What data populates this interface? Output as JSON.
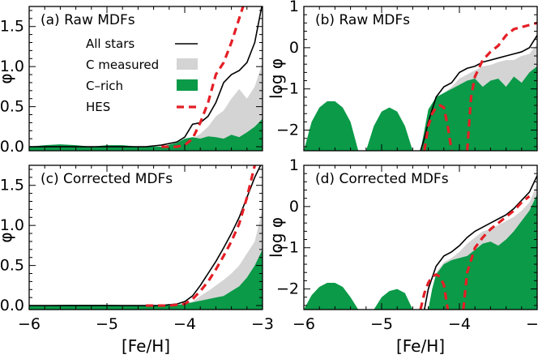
{
  "chart_data": [
    {
      "id": "a",
      "type": "area",
      "title": "(a) Raw MDFs",
      "xlabel": "",
      "ylabel": "φ",
      "xlim": [
        -6,
        -3
      ],
      "ylim": [
        -0.05,
        1.75
      ],
      "xticks": [
        -6,
        -5,
        -4,
        -3
      ],
      "yticks": [
        0.0,
        0.5,
        1.0,
        1.5
      ],
      "ytick_labels": [
        "0.0",
        "0.5",
        "1.0",
        "1.5"
      ],
      "legend": [
        {
          "label": "All stars",
          "style": "black-line"
        },
        {
          "label": "C measured",
          "style": "gray-fill"
        },
        {
          "label": "C–rich",
          "style": "green-fill"
        },
        {
          "label": "HES",
          "style": "red-dash"
        }
      ],
      "series": [
        {
          "name": "All stars",
          "x": [
            -6.0,
            -5.5,
            -5.0,
            -4.6,
            -4.5,
            -4.3,
            -4.1,
            -4.0,
            -3.9,
            -3.8,
            -3.7,
            -3.6,
            -3.5,
            -3.4,
            -3.3,
            -3.2,
            -3.1,
            -3.0
          ],
          "y": [
            0.0,
            0.0,
            0.0,
            0.0,
            0.0,
            0.02,
            0.06,
            0.12,
            0.28,
            0.3,
            0.38,
            0.55,
            0.8,
            0.9,
            0.95,
            1.05,
            1.3,
            1.8
          ]
        },
        {
          "name": "C measured",
          "x": [
            -6.0,
            -5.0,
            -4.5,
            -4.3,
            -4.1,
            -4.0,
            -3.9,
            -3.8,
            -3.7,
            -3.6,
            -3.5,
            -3.4,
            -3.3,
            -3.2,
            -3.1,
            -3.0
          ],
          "y": [
            0.0,
            0.0,
            0.0,
            0.0,
            0.02,
            0.05,
            0.1,
            0.16,
            0.25,
            0.38,
            0.45,
            0.6,
            0.72,
            0.6,
            0.75,
            1.05
          ]
        },
        {
          "name": "C-rich",
          "x": [
            -6.0,
            -5.8,
            -5.6,
            -5.4,
            -5.2,
            -5.0,
            -4.8,
            -4.6,
            -4.5,
            -4.3,
            -4.1,
            -4.0,
            -3.9,
            -3.8,
            -3.7,
            -3.6,
            -3.5,
            -3.4,
            -3.3,
            -3.2,
            -3.1,
            -3.0
          ],
          "y": [
            0.0,
            0.02,
            0.03,
            0.02,
            0.0,
            0.02,
            0.02,
            0.0,
            0.0,
            0.0,
            0.05,
            0.1,
            0.12,
            0.1,
            0.13,
            0.12,
            0.1,
            0.15,
            0.12,
            0.18,
            0.25,
            0.35
          ]
        },
        {
          "name": "HES",
          "x": [
            -4.3,
            -4.1,
            -4.0,
            -3.9,
            -3.8,
            -3.7,
            -3.6,
            -3.5,
            -3.4,
            -3.3,
            -3.25
          ],
          "y": [
            0.0,
            0.0,
            0.02,
            0.1,
            0.3,
            0.55,
            0.9,
            1.05,
            1.3,
            1.6,
            1.75
          ]
        }
      ]
    },
    {
      "id": "b",
      "type": "area",
      "title": "(b) Raw MDFs",
      "xlabel": "",
      "ylabel": "log φ",
      "xlim": [
        -6,
        -3
      ],
      "ylim": [
        -2.5,
        1.0
      ],
      "xticks": [
        -6,
        -5,
        -4,
        -3
      ],
      "yticks": [
        -2,
        -1,
        0,
        1
      ],
      "ytick_labels": [
        "−2",
        "−1",
        "0",
        "1"
      ],
      "series": [
        {
          "name": "All stars",
          "x": [
            -4.5,
            -4.45,
            -4.4,
            -4.3,
            -4.2,
            -4.1,
            -4.0,
            -3.9,
            -3.8,
            -3.7,
            -3.6,
            -3.5,
            -3.4,
            -3.3,
            -3.2,
            -3.1,
            -3.0
          ],
          "y": [
            -2.5,
            -2.2,
            -1.8,
            -1.2,
            -0.95,
            -0.85,
            -0.6,
            -0.5,
            -0.45,
            -0.35,
            -0.3,
            -0.25,
            -0.2,
            -0.15,
            -0.1,
            0.0,
            0.3
          ]
        },
        {
          "name": "C measured",
          "x": [
            -4.45,
            -4.4,
            -4.3,
            -4.2,
            -4.1,
            -4.0,
            -3.9,
            -3.8,
            -3.7,
            -3.6,
            -3.5,
            -3.4,
            -3.3,
            -3.2,
            -3.1,
            -3.0
          ],
          "y": [
            -2.5,
            -2.0,
            -1.4,
            -1.1,
            -0.95,
            -0.75,
            -0.65,
            -0.55,
            -0.45,
            -0.42,
            -0.35,
            -0.3,
            -0.3,
            -0.2,
            -0.15,
            0.1
          ]
        },
        {
          "name": "C-rich",
          "x": [
            -6.0,
            -5.9,
            -5.8,
            -5.7,
            -5.6,
            -5.5,
            -5.4,
            -5.3,
            -5.2,
            -5.1,
            -5.0,
            -4.9,
            -4.8,
            -4.7,
            -4.6,
            -4.5,
            -4.45,
            -4.4,
            -4.3,
            -4.2,
            -4.1,
            -4.0,
            -3.9,
            -3.8,
            -3.7,
            -3.6,
            -3.5,
            -3.4,
            -3.3,
            -3.2,
            -3.1,
            -3.0
          ],
          "y": [
            -2.5,
            -1.8,
            -1.45,
            -1.3,
            -1.3,
            -1.45,
            -1.8,
            -2.5,
            -2.5,
            -1.9,
            -1.55,
            -1.45,
            -1.55,
            -1.9,
            -2.5,
            -2.5,
            -2.0,
            -1.5,
            -1.2,
            -1.1,
            -1.0,
            -0.9,
            -0.8,
            -0.75,
            -0.95,
            -0.8,
            -0.75,
            -0.95,
            -0.7,
            -0.85,
            -0.6,
            -0.45
          ]
        },
        {
          "name": "HES (part 1)",
          "x": [
            -4.45,
            -4.4,
            -4.35,
            -4.3,
            -4.25,
            -4.2,
            -4.15,
            -4.1
          ],
          "y": [
            -2.5,
            -1.9,
            -1.6,
            -1.45,
            -1.4,
            -1.45,
            -1.9,
            -2.5
          ]
        },
        {
          "name": "HES (part 2)",
          "x": [
            -3.9,
            -3.85,
            -3.8,
            -3.7,
            -3.6,
            -3.5,
            -3.4,
            -3.3,
            -3.2,
            -3.1,
            -3.0
          ],
          "y": [
            -2.5,
            -1.2,
            -0.7,
            -0.3,
            -0.1,
            0.05,
            0.3,
            0.45,
            0.5,
            0.55,
            0.6
          ]
        }
      ]
    },
    {
      "id": "c",
      "type": "area",
      "title": "(c) Corrected MDFs",
      "xlabel": "[Fe/H]",
      "ylabel": "φ",
      "xlim": [
        -6,
        -3
      ],
      "ylim": [
        -0.05,
        1.75
      ],
      "xticks": [
        -6,
        -5,
        -4,
        -3
      ],
      "yticks": [
        0.0,
        0.5,
        1.0,
        1.5
      ],
      "ytick_labels": [
        "0.0",
        "0.5",
        "1.0",
        "1.5"
      ],
      "series": [
        {
          "name": "All stars",
          "x": [
            -6.0,
            -5.0,
            -4.5,
            -4.3,
            -4.1,
            -4.0,
            -3.9,
            -3.8,
            -3.7,
            -3.6,
            -3.5,
            -3.4,
            -3.3,
            -3.2,
            -3.1,
            -3.0
          ],
          "y": [
            0.0,
            0.0,
            0.0,
            0.0,
            0.02,
            0.05,
            0.12,
            0.25,
            0.4,
            0.55,
            0.72,
            0.9,
            1.1,
            1.35,
            1.6,
            1.8
          ]
        },
        {
          "name": "C measured",
          "x": [
            -6.0,
            -5.0,
            -4.5,
            -4.2,
            -4.0,
            -3.9,
            -3.8,
            -3.7,
            -3.6,
            -3.5,
            -3.4,
            -3.3,
            -3.2,
            -3.1,
            -3.0
          ],
          "y": [
            0.0,
            0.0,
            0.0,
            0.0,
            0.02,
            0.05,
            0.12,
            0.18,
            0.25,
            0.32,
            0.4,
            0.5,
            0.65,
            0.8,
            1.2
          ]
        },
        {
          "name": "C-rich",
          "x": [
            -6.0,
            -5.5,
            -5.0,
            -4.5,
            -4.2,
            -4.0,
            -3.9,
            -3.8,
            -3.7,
            -3.6,
            -3.5,
            -3.4,
            -3.3,
            -3.2,
            -3.1,
            -3.0
          ],
          "y": [
            0.0,
            0.01,
            0.01,
            0.0,
            0.0,
            0.02,
            0.04,
            0.06,
            0.08,
            0.1,
            0.12,
            0.18,
            0.24,
            0.35,
            0.5,
            0.7
          ]
        },
        {
          "name": "HES",
          "x": [
            -4.5,
            -4.2,
            -4.0,
            -3.9,
            -3.8,
            -3.7,
            -3.6,
            -3.5,
            -3.4,
            -3.3,
            -3.2,
            -3.15,
            -3.1
          ],
          "y": [
            0.0,
            0.0,
            0.02,
            0.08,
            0.18,
            0.3,
            0.45,
            0.62,
            0.8,
            1.02,
            1.35,
            1.55,
            1.75
          ]
        }
      ]
    },
    {
      "id": "d",
      "type": "area",
      "title": "(d) Corrected MDFs",
      "xlabel": "[Fe/H]",
      "ylabel": "log φ",
      "xlim": [
        -6,
        -3
      ],
      "ylim": [
        -2.5,
        1.0
      ],
      "xticks": [
        -6,
        -5,
        -4,
        -3
      ],
      "yticks": [
        -2,
        -1,
        0,
        1
      ],
      "ytick_labels": [
        "−2",
        "−1",
        "0",
        "1"
      ],
      "series": [
        {
          "name": "All stars",
          "x": [
            -4.45,
            -4.4,
            -4.3,
            -4.2,
            -4.1,
            -4.0,
            -3.9,
            -3.8,
            -3.7,
            -3.6,
            -3.5,
            -3.4,
            -3.3,
            -3.2,
            -3.1,
            -3.0
          ],
          "y": [
            -2.5,
            -2.0,
            -1.45,
            -1.2,
            -1.1,
            -0.95,
            -0.75,
            -0.6,
            -0.5,
            -0.4,
            -0.3,
            -0.2,
            -0.05,
            0.15,
            0.35,
            0.75
          ]
        },
        {
          "name": "C measured",
          "x": [
            -4.4,
            -4.35,
            -4.3,
            -4.2,
            -4.1,
            -4.0,
            -3.9,
            -3.8,
            -3.7,
            -3.6,
            -3.5,
            -3.4,
            -3.3,
            -3.2,
            -3.1,
            -3.0
          ],
          "y": [
            -2.5,
            -2.0,
            -1.6,
            -1.35,
            -1.25,
            -1.1,
            -0.9,
            -0.75,
            -0.6,
            -0.55,
            -0.45,
            -0.35,
            -0.25,
            -0.1,
            0.1,
            0.55
          ]
        },
        {
          "name": "C-rich",
          "x": [
            -6.0,
            -5.9,
            -5.8,
            -5.7,
            -5.6,
            -5.5,
            -5.4,
            -5.3,
            -5.2,
            -5.1,
            -5.0,
            -4.9,
            -4.8,
            -4.7,
            -4.6,
            -4.5,
            -4.4,
            -4.35,
            -4.3,
            -4.2,
            -4.1,
            -4.0,
            -3.9,
            -3.8,
            -3.7,
            -3.6,
            -3.5,
            -3.4,
            -3.3,
            -3.2,
            -3.1,
            -3.0
          ],
          "y": [
            -2.5,
            -2.15,
            -1.95,
            -1.85,
            -1.85,
            -1.95,
            -2.2,
            -2.5,
            -2.5,
            -2.5,
            -2.2,
            -2.05,
            -2.0,
            -2.1,
            -2.5,
            -2.5,
            -2.5,
            -2.0,
            -1.65,
            -1.4,
            -1.3,
            -1.25,
            -1.2,
            -1.05,
            -0.9,
            -0.85,
            -0.95,
            -0.8,
            -0.6,
            -0.35,
            -0.1,
            0.3
          ]
        },
        {
          "name": "HES (part 1)",
          "x": [
            -4.5,
            -4.45,
            -4.4,
            -4.35,
            -4.3,
            -4.25,
            -4.2,
            -4.15
          ],
          "y": [
            -2.5,
            -2.1,
            -1.85,
            -1.7,
            -1.65,
            -1.7,
            -1.9,
            -2.5
          ]
        },
        {
          "name": "HES (part 2)",
          "x": [
            -3.95,
            -3.9,
            -3.8,
            -3.7,
            -3.6,
            -3.5,
            -3.4,
            -3.3,
            -3.2,
            -3.1
          ],
          "y": [
            -2.5,
            -1.6,
            -1.0,
            -0.75,
            -0.55,
            -0.4,
            -0.25,
            -0.1,
            0.1,
            0.25
          ]
        }
      ]
    }
  ]
}
